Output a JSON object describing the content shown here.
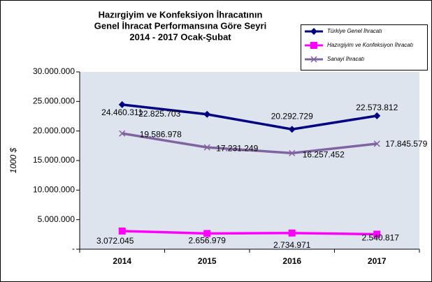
{
  "chart_data": {
    "type": "line",
    "title": [
      "Hazırgiyim ve Konfeksiyon İhracatının",
      "Genel İhracat Performansına Göre Seyri",
      "2014 - 2017 Ocak-Şubat"
    ],
    "y_label": "1000 $",
    "categories": [
      "2014",
      "2015",
      "2016",
      "2017"
    ],
    "series": [
      {
        "name": "Türkiye Genel İhracatı",
        "color": "#000080",
        "marker": "diamond",
        "values": [
          24460311,
          22825703,
          20292729,
          22573812
        ],
        "value_labels": [
          "24.460.311",
          "22.825.703",
          "20.292.729",
          "22.573.812"
        ]
      },
      {
        "name": "Hazırgiyim ve Konfeksiyon İhracatı",
        "color": "#ff00ff",
        "marker": "square",
        "values": [
          3072045,
          2656979,
          2734971,
          2540817
        ],
        "value_labels": [
          "3.072.045",
          "2.656.979",
          "2.734.971",
          "2.540.817"
        ]
      },
      {
        "name": "Sanayi İhracatı",
        "color": "#8064a2",
        "marker": "x",
        "values": [
          19586978,
          17231249,
          16257452,
          17845579
        ],
        "value_labels": [
          "19.586.978",
          "17.231.249",
          "16.257.452",
          "17.845.579"
        ]
      }
    ],
    "ylim": [
      0,
      30000000
    ],
    "yticks": [
      {
        "value": 0,
        "label": "-"
      },
      {
        "value": 5000000,
        "label": "5.000.000"
      },
      {
        "value": 10000000,
        "label": "10.000.000"
      },
      {
        "value": 15000000,
        "label": "15.000.000"
      },
      {
        "value": 20000000,
        "label": "20.000.000"
      },
      {
        "value": 25000000,
        "label": "25.000.000"
      },
      {
        "value": 30000000,
        "label": "30.000.000"
      }
    ],
    "legend": "top-right"
  }
}
